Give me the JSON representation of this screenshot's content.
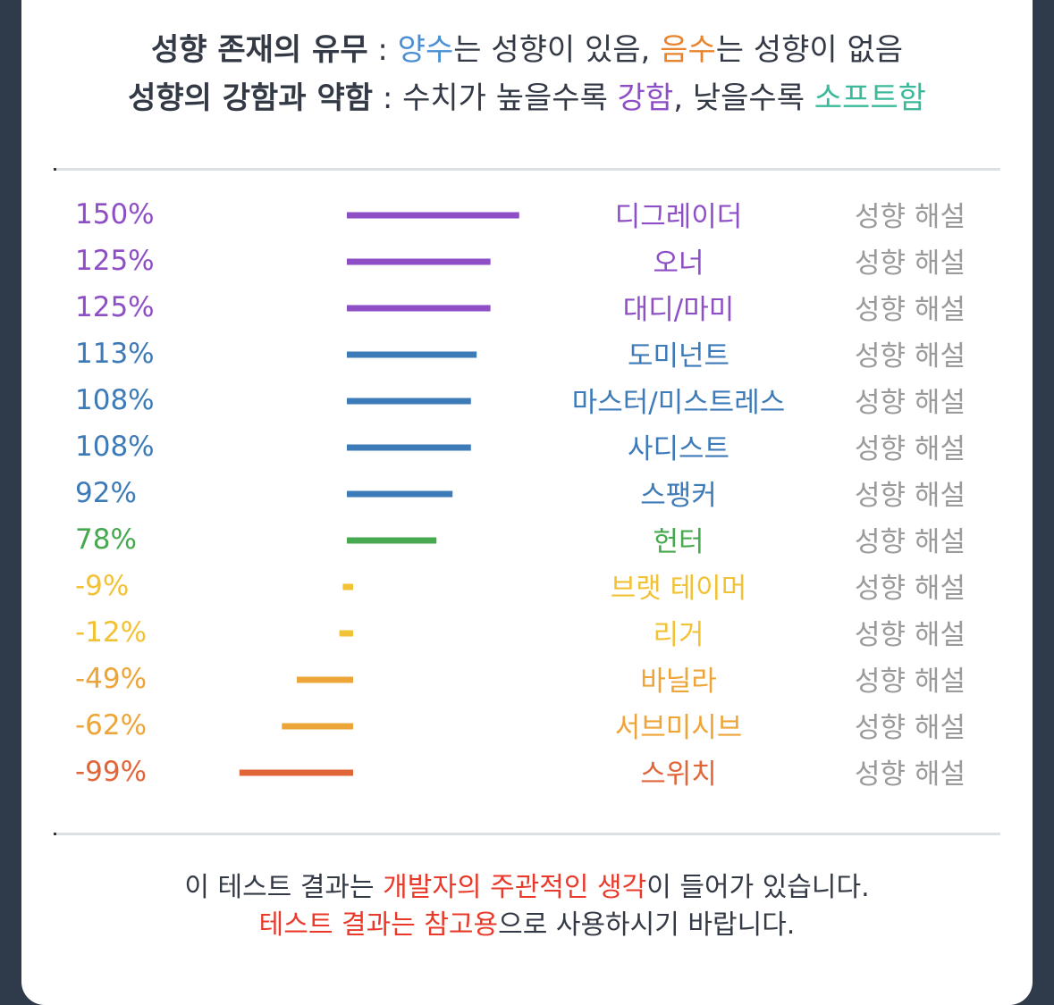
{
  "legend": {
    "line1": {
      "label": "성향 존재의 유무",
      "sep": " : ",
      "pos_word": "양수",
      "pos_rest": "는 성향이 있음, ",
      "neg_word": "음수",
      "neg_rest": "는 성향이 없음"
    },
    "line2": {
      "label": "성향의 강함과 약함",
      "sep": " : ",
      "text1": "수치가 높을수록 ",
      "strong_word": "강함",
      "text2": ", 낮을수록 ",
      "soft_word": "소프트함"
    },
    "colors": {
      "pos": "#4a8fd4",
      "neg": "#e8842e",
      "strong": "#8e4ec6",
      "soft": "#3cb99a"
    }
  },
  "chart_data": {
    "type": "bar",
    "orientation": "horizontal",
    "row_action_label": "성향 해설",
    "items": [
      {
        "value": 150,
        "value_label": "150%",
        "label": "디그레이더",
        "color": "#8e4ec6"
      },
      {
        "value": 125,
        "value_label": "125%",
        "label": "오너",
        "color": "#8e4ec6"
      },
      {
        "value": 125,
        "value_label": "125%",
        "label": "대디/마미",
        "color": "#8e4ec6"
      },
      {
        "value": 113,
        "value_label": "113%",
        "label": "도미넌트",
        "color": "#3d7ab8"
      },
      {
        "value": 108,
        "value_label": "108%",
        "label": "마스터/미스트레스",
        "color": "#3d7ab8"
      },
      {
        "value": 108,
        "value_label": "108%",
        "label": "사디스트",
        "color": "#3d7ab8"
      },
      {
        "value": 92,
        "value_label": "92%",
        "label": "스팽커",
        "color": "#3d7ab8"
      },
      {
        "value": 78,
        "value_label": "78%",
        "label": "헌터",
        "color": "#46a84f"
      },
      {
        "value": -9,
        "value_label": "-9%",
        "label": "브랫 테이머",
        "color": "#f2c236"
      },
      {
        "value": -12,
        "value_label": "-12%",
        "label": "리거",
        "color": "#f2c236"
      },
      {
        "value": -49,
        "value_label": "-49%",
        "label": "바닐라",
        "color": "#eda53a"
      },
      {
        "value": -62,
        "value_label": "-62%",
        "label": "서브미시브",
        "color": "#eda53a"
      },
      {
        "value": -99,
        "value_label": "-99%",
        "label": "스위치",
        "color": "#e0663a"
      }
    ]
  },
  "footer": {
    "line1": {
      "text1": "이 테스트 결과는 ",
      "highlight": "개발자의 주관적인 생각",
      "text2": "이 들어가 있습니다."
    },
    "line2": {
      "highlight": "테스트 결과는 참고용",
      "text": "으로 사용하시기 바랍니다."
    },
    "highlight_color": "#e8392a"
  }
}
